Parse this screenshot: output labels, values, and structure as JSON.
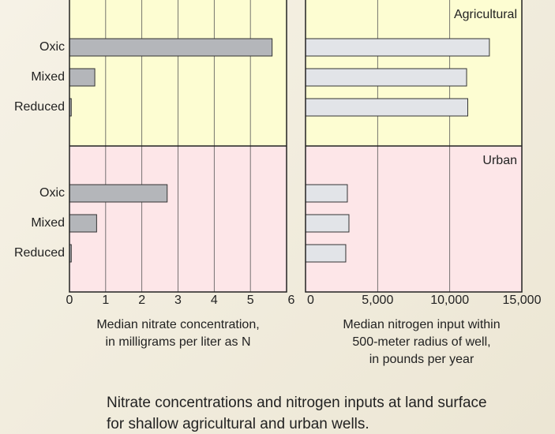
{
  "chart_data": {
    "type": "bar",
    "orientation": "horizontal",
    "categories": [
      "Oxic",
      "Mixed",
      "Reduced"
    ],
    "groups": [
      "Agricultural",
      "Urban"
    ],
    "group_colors": [
      "#fdfdd2",
      "#fde6e8"
    ],
    "grid": true,
    "panels": [
      {
        "xlabel": [
          "Median nitrate concentration,",
          "in milligrams per liter as N"
        ],
        "xlim": [
          0,
          6
        ],
        "xticks": [
          0,
          1,
          2,
          3,
          4,
          5,
          6
        ],
        "color": "#b4b6ba",
        "values": [
          [
            5.6,
            0.7,
            0.05
          ],
          [
            2.7,
            0.75,
            0.05
          ]
        ]
      },
      {
        "xlabel": [
          "Median nitrogen input within",
          "500-meter radius of well,",
          "in pounds per year"
        ],
        "xlim": [
          0,
          15000
        ],
        "xticks": [
          0,
          {
            "value": 5000,
            "label": "5,000"
          },
          {
            "value": 10000,
            "label": "10,000"
          },
          {
            "value": 15000,
            "label": "15,000"
          }
        ],
        "color": "#e2e4e8",
        "values": [
          [
            12750,
            11170,
            11250
          ],
          [
            2900,
            3010,
            2790
          ]
        ]
      }
    ],
    "caption": [
      "Nitrate concentrations and nitrogen inputs at land surface",
      "for shallow agricultural and urban wells."
    ]
  }
}
